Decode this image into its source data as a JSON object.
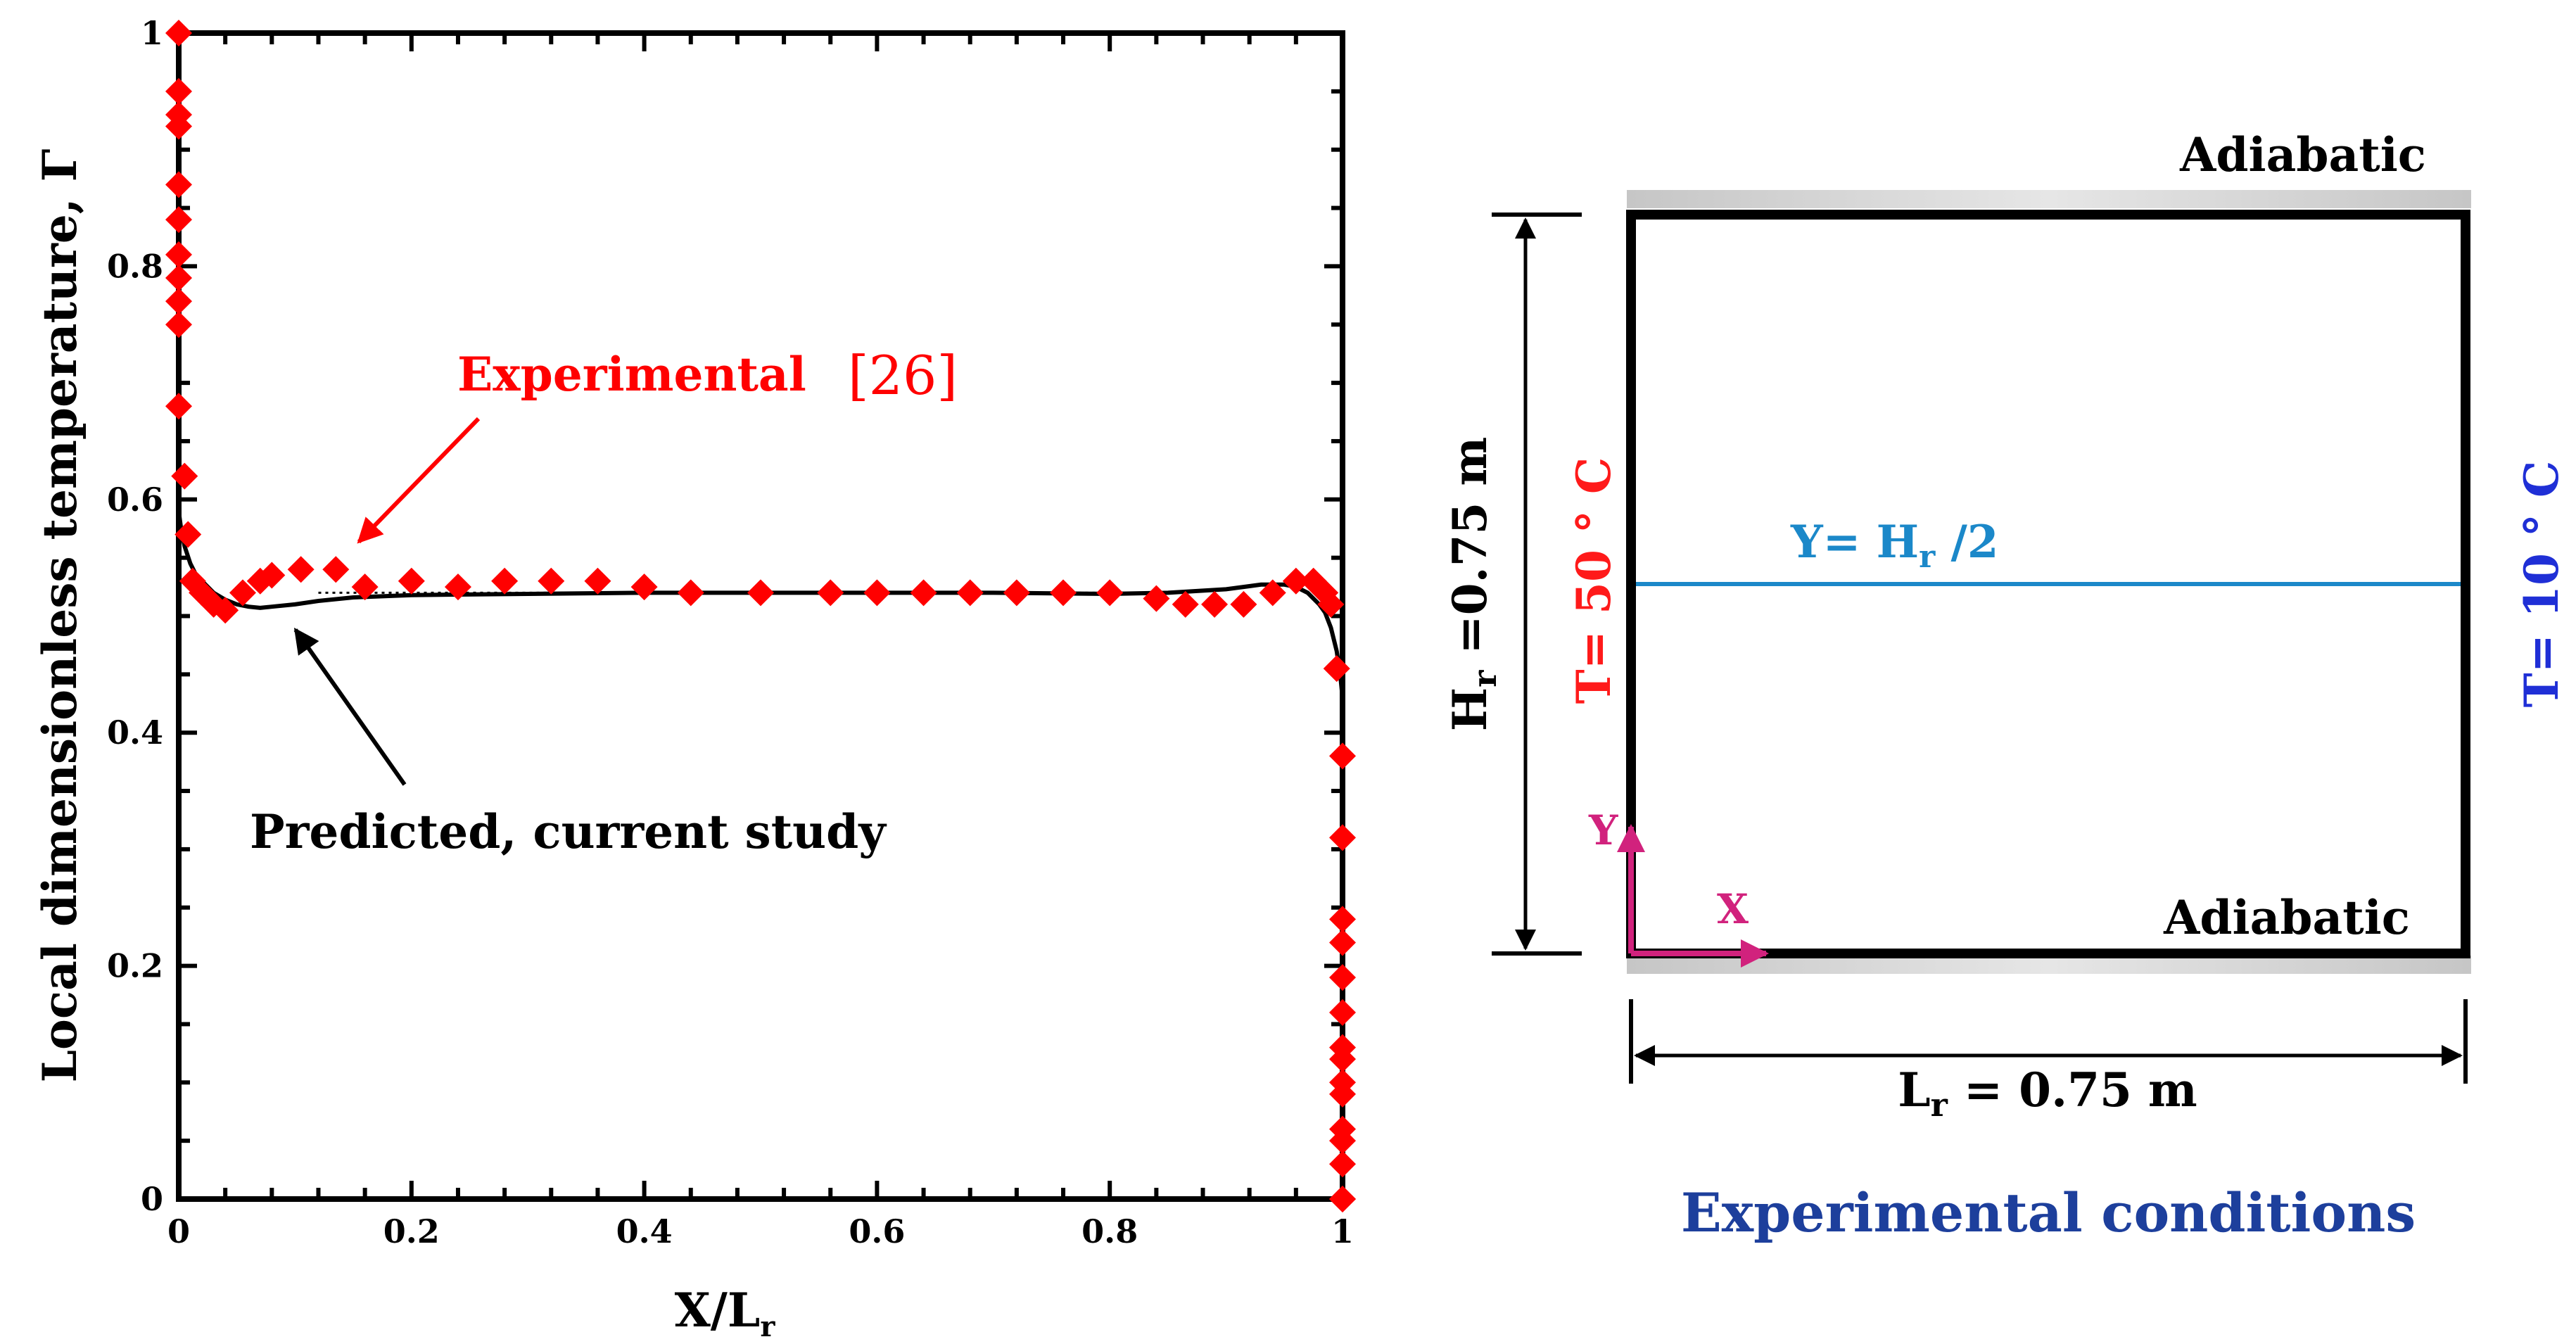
{
  "chart_data": {
    "type": "line",
    "title": "",
    "xlabel": {
      "main": "X/L",
      "sub": "r"
    },
    "ylabel": "Local dimensionless temperature, Γ",
    "xlim": [
      0,
      1
    ],
    "ylim": [
      0,
      1
    ],
    "x_ticks": [
      "0",
      "0.2",
      "0.4",
      "0.6",
      "0.8",
      "1"
    ],
    "y_ticks": [
      "0",
      "0.2",
      "0.4",
      "0.6",
      "0.8",
      "1"
    ],
    "grid": false,
    "series": [
      {
        "name": "Experimental [26]",
        "marker": "diamond",
        "color": "#ff0000",
        "x": [
          0,
          0,
          0,
          0,
          0,
          0,
          0,
          0,
          0,
          0,
          0,
          0.005,
          0.008,
          0.012,
          0.02,
          0.03,
          0.04,
          0.055,
          0.07,
          0.08,
          0.105,
          0.135,
          0.16,
          0.2,
          0.24,
          0.28,
          0.32,
          0.36,
          0.4,
          0.44,
          0.5,
          0.56,
          0.6,
          0.64,
          0.68,
          0.72,
          0.76,
          0.8,
          0.84,
          0.865,
          0.89,
          0.915,
          0.94,
          0.96,
          0.975,
          0.985,
          0.99,
          0.995,
          1.0,
          1.0,
          1.0,
          1.0,
          1.0,
          1.0,
          1.0,
          1.0,
          1.0,
          1.0,
          1.0,
          1.0,
          1.0,
          1.0,
          1.0
        ],
        "y": [
          1.0,
          0.95,
          0.93,
          0.92,
          0.87,
          0.84,
          0.81,
          0.79,
          0.77,
          0.75,
          0.68,
          0.62,
          0.57,
          0.53,
          0.52,
          0.51,
          0.505,
          0.52,
          0.53,
          0.535,
          0.54,
          0.54,
          0.525,
          0.53,
          0.525,
          0.53,
          0.53,
          0.53,
          0.525,
          0.52,
          0.52,
          0.52,
          0.52,
          0.52,
          0.52,
          0.52,
          0.52,
          0.52,
          0.515,
          0.51,
          0.51,
          0.51,
          0.52,
          0.53,
          0.53,
          0.52,
          0.51,
          0.455,
          0.38,
          0.31,
          0.24,
          0.22,
          0.19,
          0.16,
          0.13,
          0.12,
          0.1,
          0.09,
          0.06,
          0.05,
          0.03,
          0.0,
          0.0
        ]
      },
      {
        "name": "Predicted, current study",
        "color": "#000000",
        "x": [
          0,
          0.002,
          0.005,
          0.01,
          0.015,
          0.02,
          0.03,
          0.04,
          0.05,
          0.06,
          0.07,
          0.08,
          0.1,
          0.12,
          0.15,
          0.2,
          0.3,
          0.4,
          0.5,
          0.6,
          0.7,
          0.8,
          0.85,
          0.9,
          0.93,
          0.95,
          0.96,
          0.97,
          0.98,
          0.985,
          0.99,
          0.995,
          0.998,
          1.0
        ],
        "y": [
          0.59,
          0.575,
          0.56,
          0.545,
          0.535,
          0.53,
          0.52,
          0.514,
          0.51,
          0.508,
          0.507,
          0.508,
          0.51,
          0.513,
          0.516,
          0.518,
          0.519,
          0.52,
          0.52,
          0.52,
          0.52,
          0.519,
          0.52,
          0.523,
          0.527,
          0.527,
          0.525,
          0.52,
          0.51,
          0.503,
          0.49,
          0.47,
          0.45,
          0.43
        ]
      }
    ],
    "annotations": {
      "experimental_label": "Experimental",
      "experimental_ref": "[26]",
      "predicted_label": "Predicted, current study"
    }
  },
  "diagram": {
    "top_wall": "Adiabatic",
    "bottom_wall": "Adiabatic",
    "left_wall": "T= 50 ° C",
    "right_wall": "T= 10 ° C",
    "height_dim": {
      "sym": "H",
      "sub": "r",
      "rest": " =0.75 m"
    },
    "length_dim": {
      "sym": "L",
      "sub": "r",
      "rest": " = 0.75 m"
    },
    "midline": {
      "pre": "Y= H",
      "sub": "r",
      "post": " /2"
    },
    "axis_y": "Y",
    "axis_x": "X",
    "caption": "Experimental conditions"
  },
  "colors": {
    "experimental": "#ff0000",
    "predicted": "#000000",
    "hot_wall": "#ff1a1a",
    "cold_wall": "#1f2fd6",
    "midline": "#1b88c9",
    "axes_arrows": "#d1227d",
    "caption": "#1d3f9c",
    "adiabatic_band": "#cccccc"
  }
}
